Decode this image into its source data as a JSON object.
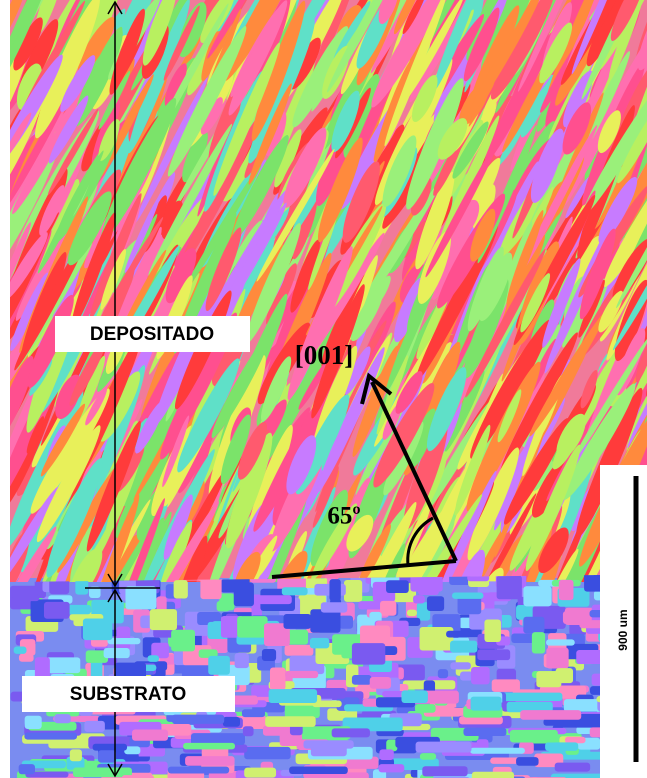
{
  "labels": {
    "deposit": "DEPOSITADO",
    "substrate": "SUBSTRATO",
    "direction": "[001]",
    "angle": "65º",
    "scale": "900 um"
  }
}
